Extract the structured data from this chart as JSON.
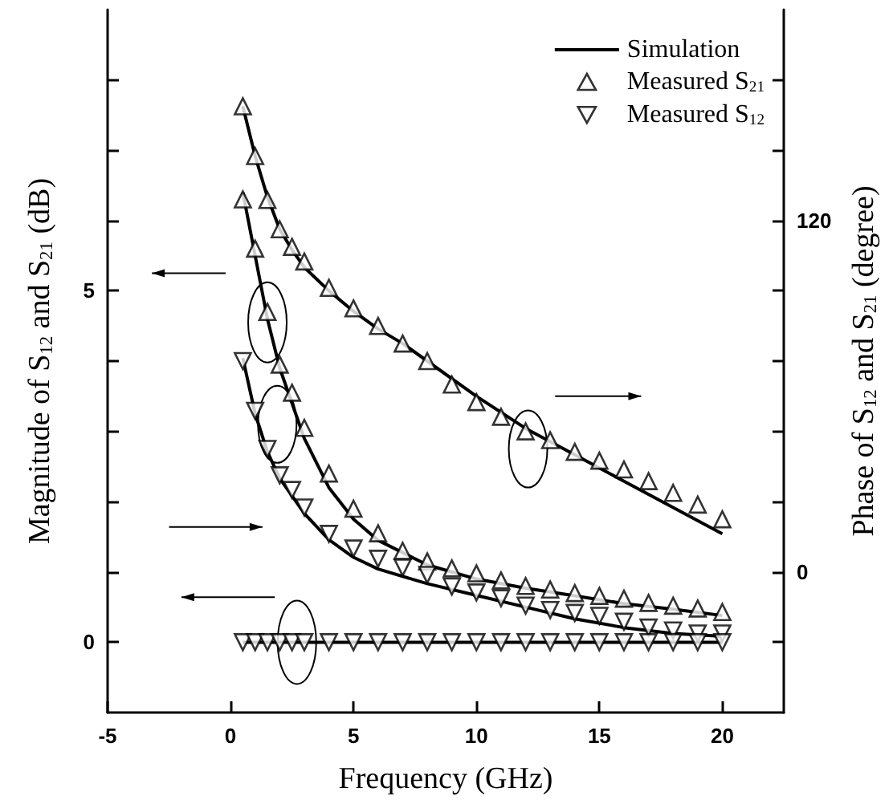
{
  "chart_data": {
    "type": "line",
    "xlabel": "Frequency (GHz)",
    "ylabel": "Magnitude of S$_{12}$ and S$_{21}$ (dB)",
    "y2label": "Phase of S$_{12}$ and S$_{21}$ (degree)",
    "xlim": [
      -5,
      22.5
    ],
    "xticks": [
      -5,
      0,
      5,
      10,
      15,
      20
    ],
    "ylim": [
      -1,
      9
    ],
    "yticks": [
      0,
      {
        "value": 1,
        "label": null
      },
      {
        "value": 2,
        "label": null
      },
      {
        "value": 3,
        "label": null
      },
      {
        "value": 4,
        "label": null
      },
      5,
      {
        "value": 6,
        "label": null
      },
      {
        "value": 7,
        "label": null
      },
      {
        "value": 8,
        "label": null
      }
    ],
    "y2lim": [
      -48,
      192
    ],
    "y2ticks": [
      {
        "value": -24,
        "label": null
      },
      0,
      {
        "value": 24,
        "label": null
      },
      {
        "value": 48,
        "label": null
      },
      {
        "value": 72,
        "label": null
      },
      {
        "value": 96,
        "label": null
      },
      120,
      {
        "value": 144,
        "label": null
      },
      {
        "value": 168,
        "label": null
      }
    ],
    "grid": false,
    "legend": "top right",
    "series": [
      {
        "name": "Simulation",
        "color": "#000000",
        "marker": "none",
        "axis": "y2",
        "x": [
          0.5,
          1,
          1.5,
          2,
          2.5,
          3,
          4,
          5,
          6,
          7,
          8,
          10,
          12,
          14,
          16,
          18,
          20
        ],
        "values": [
          159,
          142,
          128,
          117,
          110,
          104,
          96,
          89,
          83,
          78,
          72,
          60,
          49,
          40,
          31,
          22,
          13
        ]
      },
      {
        "color": "#000000",
        "marker": "none",
        "x": [
          0.5,
          1,
          1.5,
          2,
          3,
          4,
          5,
          6,
          8,
          10,
          12,
          14,
          16,
          18,
          20
        ],
        "values": [
          6.4,
          5.5,
          4.6,
          3.9,
          2.9,
          2.2,
          1.75,
          1.45,
          1.1,
          0.9,
          0.77,
          0.66,
          0.55,
          0.47,
          0.38
        ]
      },
      {
        "color": "#000000",
        "marker": "none",
        "axis": "y2",
        "x": [
          0.5,
          1,
          1.5,
          2,
          3,
          4,
          5,
          6,
          8,
          10,
          12,
          14,
          16,
          18,
          20
        ],
        "values": [
          73,
          54,
          41,
          32,
          20,
          11,
          5,
          1,
          -4,
          -8,
          -12,
          -16,
          -19,
          -21,
          -22
        ]
      },
      {
        "color": "#000000",
        "marker": "none",
        "x": [
          0.5,
          20
        ],
        "values": [
          0,
          0
        ]
      },
      {
        "type": "scatter",
        "name": "Measured S$_{21}$",
        "color": "#000000",
        "marker": "triangle",
        "axis": "y2",
        "x": [
          0.5,
          1,
          1.5,
          2,
          2.5,
          3,
          4,
          5,
          6,
          7,
          8,
          9,
          10,
          11,
          12,
          13,
          14,
          15,
          16,
          17,
          18,
          19,
          20
        ],
        "values": [
          159,
          142,
          127,
          117,
          111,
          106,
          97,
          90,
          84,
          78,
          72,
          64,
          58,
          53,
          48,
          45,
          41,
          38,
          35,
          31,
          27,
          23,
          18
        ]
      },
      {
        "type": "scatter",
        "color": "#000000",
        "marker": "triangle",
        "x": [
          0.5,
          1,
          1.5,
          2,
          2.5,
          3,
          4,
          5,
          6,
          7,
          8,
          9,
          10,
          11,
          12,
          13,
          14,
          15,
          16,
          17,
          18,
          19,
          20
        ],
        "values": [
          6.3,
          5.6,
          4.7,
          3.95,
          3.55,
          3.05,
          2.4,
          1.9,
          1.55,
          1.3,
          1.15,
          1.05,
          0.98,
          0.88,
          0.8,
          0.75,
          0.7,
          0.66,
          0.62,
          0.56,
          0.52,
          0.48,
          0.43
        ]
      },
      {
        "type": "scatter",
        "name": "Measured S$_{12}$",
        "color": "#000000",
        "marker": "triangle-down",
        "axis": "y2",
        "x": [
          0.5,
          1,
          1.5,
          2,
          2.5,
          3,
          4,
          5,
          6,
          7,
          8,
          9,
          10,
          11,
          12,
          13,
          14,
          15,
          16,
          17,
          18,
          19,
          20
        ],
        "values": [
          72,
          55,
          42,
          33,
          28,
          22,
          13,
          8,
          4.5,
          1.5,
          -1,
          -5,
          -7,
          -9,
          -11.5,
          -13,
          -14,
          -15,
          -17,
          -19,
          -20,
          -21,
          -21
        ]
      },
      {
        "type": "scatter",
        "color": "#000000",
        "marker": "triangle-down",
        "x": [
          0.5,
          1,
          1.5,
          2,
          2.5,
          3,
          4,
          5,
          6,
          7,
          8,
          9,
          10,
          11,
          12,
          13,
          14,
          15,
          16,
          17,
          18,
          19,
          20
        ],
        "values": [
          0,
          0,
          0,
          0,
          0,
          0,
          0,
          0,
          0,
          0,
          0,
          0,
          0,
          0,
          0,
          0,
          0,
          0,
          0,
          0,
          0,
          0,
          0
        ]
      }
    ]
  }
}
